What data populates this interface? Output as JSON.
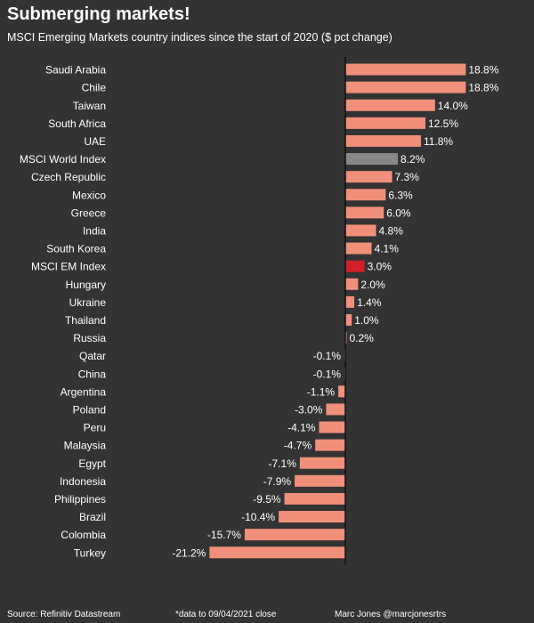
{
  "header": {
    "title": "Submerging markets!",
    "subtitle": "MSCI Emerging Markets country indices since the start of 2020 ($ pct change)"
  },
  "footer": {
    "source": "Source: Refinitiv Datastream",
    "note": "*data to 09/04/2021 close",
    "author": "Marc Jones @marcjonesrtrs"
  },
  "colors": {
    "background": "#333333",
    "bar": "#F0907A",
    "world_index": "#888888",
    "em_index": "#D0202A",
    "text": "#ffffff"
  },
  "chart_data": {
    "type": "bar",
    "orientation": "horizontal",
    "categories": [
      "Saudi Arabia",
      "Chile",
      "Taiwan",
      "South Africa",
      "UAE",
      "MSCI World Index",
      "Czech Republic",
      "Mexico",
      "Greece",
      "India",
      "South Korea",
      "MSCI EM Index",
      "Hungary",
      "Ukraine",
      "Thailand",
      "Russia",
      "Qatar",
      "China",
      "Argentina",
      "Poland",
      "Peru",
      "Malaysia",
      "Egypt",
      "Indonesia",
      "Philippines",
      "Brazil",
      "Colombia",
      "Turkey"
    ],
    "values": [
      18.8,
      18.8,
      14.0,
      12.5,
      11.8,
      8.2,
      7.3,
      6.3,
      6.0,
      4.8,
      4.1,
      3.0,
      2.0,
      1.4,
      1.0,
      0.2,
      -0.1,
      -0.1,
      -1.1,
      -3.0,
      -4.1,
      -4.7,
      -7.1,
      -7.9,
      -9.5,
      -10.4,
      -15.7,
      -21.2
    ],
    "labels": [
      "18.8%",
      "18.8%",
      "14.0%",
      "12.5%",
      "11.8%",
      "8.2%",
      "7.3%",
      "6.3%",
      "6.0%",
      "4.8%",
      "4.1%",
      "3.0%",
      "2.0%",
      "1.4%",
      "1.0%",
      "0.2%",
      "-0.1%",
      "-0.1%",
      "-1.1%",
      "-3.0%",
      "-4.1%",
      "-4.7%",
      "-7.1%",
      "-7.9%",
      "-9.5%",
      "-10.4%",
      "-15.7%",
      "-21.2%"
    ],
    "highlight": {
      "MSCI World Index": "#888888",
      "MSCI EM Index": "#D0202A"
    },
    "title": "Submerging markets!",
    "xlabel": "",
    "ylabel": "",
    "grid": false,
    "legend": false
  }
}
